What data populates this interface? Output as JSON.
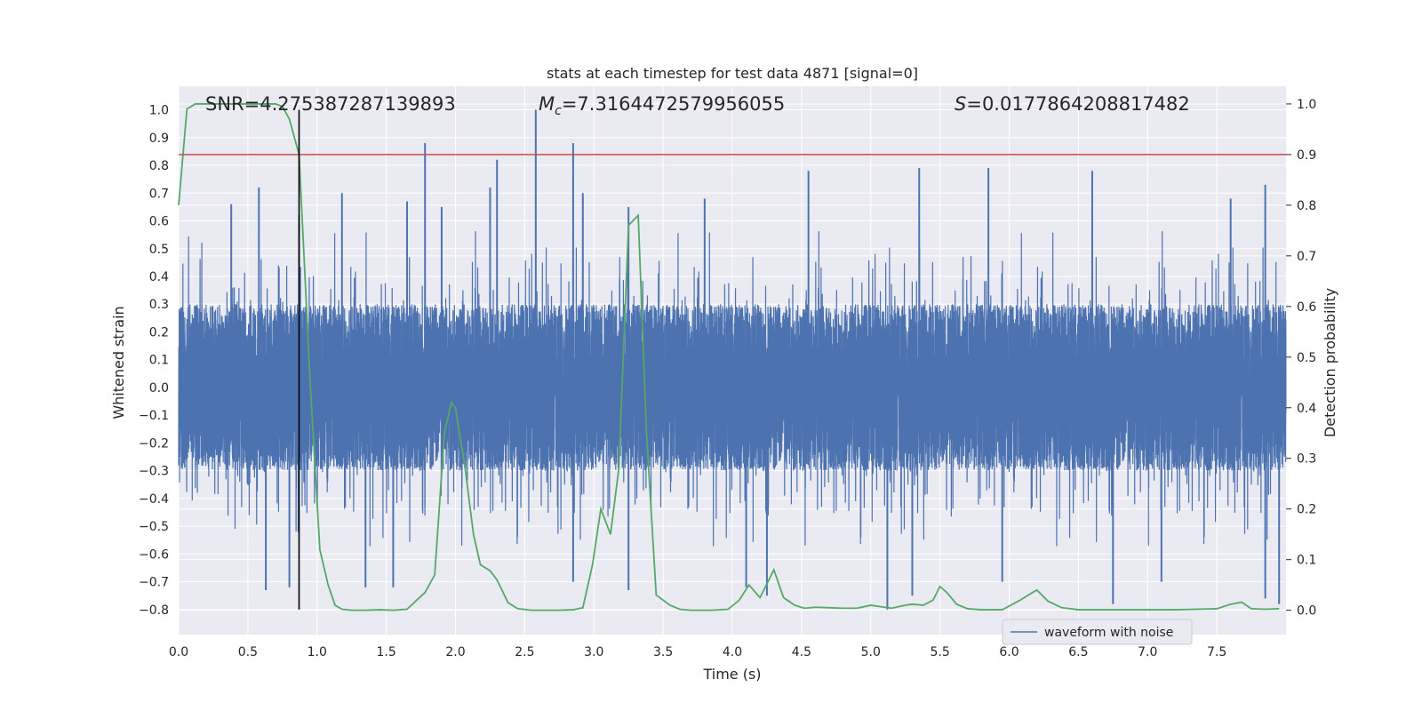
{
  "chart_data": {
    "type": "line",
    "title": "stats at each timestep for test data 4871 [signal=0]",
    "xlabel": "Time (s)",
    "ylabel": "Whitened strain",
    "ylabel_right": "Detection probability",
    "xlim": [
      0.0,
      8.0
    ],
    "ylim_left": [
      -0.89,
      1.085
    ],
    "ylim_right": [
      -0.048,
      1.035
    ],
    "x_ticks": [
      "0.0",
      "0.5",
      "1.0",
      "1.5",
      "2.0",
      "2.5",
      "3.0",
      "3.5",
      "4.0",
      "4.5",
      "5.0",
      "5.5",
      "6.0",
      "6.5",
      "7.0",
      "7.5"
    ],
    "y_ticks_left": [
      "1.0",
      "0.9",
      "0.8",
      "0.7",
      "0.6",
      "0.5",
      "0.4",
      "0.3",
      "0.2",
      "0.1",
      "0.0",
      "−0.1",
      "−0.2",
      "−0.3",
      "−0.4",
      "−0.5",
      "−0.6",
      "−0.7",
      "−0.8"
    ],
    "y_ticks_right": [
      "1.0",
      "0.9",
      "0.8",
      "0.7",
      "0.6",
      "0.5",
      "0.4",
      "0.3",
      "0.2",
      "0.1",
      "0.0"
    ],
    "grid": true,
    "legend": {
      "position": "lower-right",
      "entries": [
        "waveform with noise"
      ]
    },
    "annotations": {
      "snr": "SNR=4.275387287139893",
      "mc_symbol": "M",
      "mc_sub": "c",
      "mc_value": "=7.3164472579956055",
      "s_symbol": "S",
      "s_value": "=0.0177864208817482"
    },
    "threshold_probability": 0.9,
    "vertical_marker_time": 0.87,
    "series": [
      {
        "name": "waveform with noise",
        "axis": "left",
        "color": "#4c72b0",
        "sample_rate": 2048,
        "core_amplitude": 0.3,
        "spikes": [
          [
            0.58,
            0.72
          ],
          [
            0.87,
            0.62
          ],
          [
            1.18,
            0.7
          ],
          [
            1.78,
            0.88
          ],
          [
            1.65,
            0.67
          ],
          [
            2.3,
            0.82
          ],
          [
            2.25,
            0.72
          ],
          [
            2.58,
            1.0
          ],
          [
            2.85,
            0.88
          ],
          [
            3.8,
            0.68
          ],
          [
            4.55,
            0.78
          ],
          [
            5.35,
            0.79
          ],
          [
            5.85,
            0.79
          ],
          [
            6.6,
            0.78
          ],
          [
            7.85,
            0.73
          ],
          [
            7.6,
            0.68
          ],
          [
            2.92,
            0.7
          ],
          [
            3.25,
            0.65
          ],
          [
            1.9,
            0.65
          ],
          [
            0.38,
            0.66
          ],
          [
            0.8,
            -0.72
          ],
          [
            1.35,
            -0.72
          ],
          [
            1.55,
            -0.72
          ],
          [
            3.25,
            -0.73
          ],
          [
            4.25,
            -0.75
          ],
          [
            5.12,
            -0.8
          ],
          [
            5.3,
            -0.75
          ],
          [
            6.75,
            -0.78
          ],
          [
            7.85,
            -0.76
          ],
          [
            0.63,
            -0.73
          ],
          [
            2.85,
            -0.7
          ],
          [
            7.95,
            -0.78
          ],
          [
            4.1,
            -0.72
          ],
          [
            5.95,
            -0.7
          ],
          [
            7.1,
            -0.7
          ]
        ]
      },
      {
        "name": "",
        "axis": "right",
        "color": "#55a868",
        "x": [
          0.0,
          0.06,
          0.12,
          0.2,
          0.3,
          0.4,
          0.5,
          0.6,
          0.7,
          0.75,
          0.8,
          0.87,
          0.95,
          1.02,
          1.08,
          1.13,
          1.18,
          1.25,
          1.35,
          1.45,
          1.55,
          1.65,
          1.72,
          1.78,
          1.85,
          1.92,
          1.97,
          2.0,
          2.07,
          2.13,
          2.18,
          2.25,
          2.3,
          2.38,
          2.45,
          2.55,
          2.65,
          2.75,
          2.85,
          2.92,
          2.99,
          3.05,
          3.12,
          3.18,
          3.25,
          3.32,
          3.38,
          3.45,
          3.55,
          3.62,
          3.7,
          3.85,
          3.97,
          4.05,
          4.12,
          4.2,
          4.3,
          4.37,
          4.45,
          4.52,
          4.6,
          4.7,
          4.8,
          4.9,
          5.0,
          5.05,
          5.15,
          5.25,
          5.3,
          5.38,
          5.45,
          5.5,
          5.55,
          5.62,
          5.7,
          5.8,
          5.95,
          6.08,
          6.15,
          6.2,
          6.28,
          6.38,
          6.5,
          6.65,
          6.8,
          7.0,
          7.2,
          7.35,
          7.5,
          7.6,
          7.68,
          7.75,
          7.85,
          7.95
        ],
        "y": [
          0.8,
          0.99,
          1.0,
          1.0,
          1.0,
          1.0,
          1.0,
          1.0,
          1.0,
          0.995,
          0.97,
          0.9,
          0.45,
          0.12,
          0.05,
          0.01,
          0.002,
          0.0,
          0.0,
          0.001,
          0.0,
          0.002,
          0.02,
          0.035,
          0.07,
          0.35,
          0.41,
          0.4,
          0.28,
          0.15,
          0.09,
          0.078,
          0.06,
          0.015,
          0.003,
          0.0,
          0.0,
          0.0,
          0.001,
          0.005,
          0.09,
          0.2,
          0.15,
          0.28,
          0.76,
          0.78,
          0.35,
          0.03,
          0.01,
          0.002,
          0.0,
          0.0,
          0.002,
          0.02,
          0.05,
          0.025,
          0.08,
          0.025,
          0.01,
          0.004,
          0.006,
          0.005,
          0.004,
          0.004,
          0.01,
          0.008,
          0.004,
          0.01,
          0.012,
          0.01,
          0.02,
          0.047,
          0.035,
          0.012,
          0.003,
          0.001,
          0.001,
          0.02,
          0.032,
          0.04,
          0.018,
          0.005,
          0.001,
          0.001,
          0.001,
          0.001,
          0.001,
          0.002,
          0.003,
          0.012,
          0.016,
          0.003,
          0.002,
          0.003
        ]
      }
    ]
  }
}
